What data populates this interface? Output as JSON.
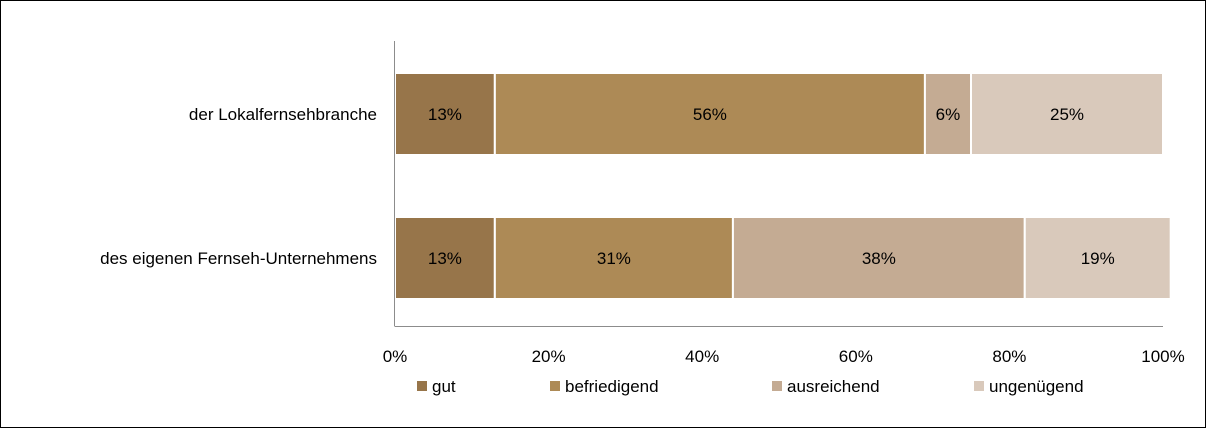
{
  "chart_data": {
    "type": "bar",
    "orientation": "horizontal",
    "stacked": true,
    "categories": [
      "der Lokalfernsehbranche",
      "des eigenen Fernseh-Unternehmens"
    ],
    "series": [
      {
        "name": "gut",
        "values": [
          13,
          13
        ],
        "color": "#97754a"
      },
      {
        "name": "befriedigend",
        "values": [
          56,
          31
        ],
        "color": "#ad8a56"
      },
      {
        "name": "ausreichend",
        "values": [
          6,
          38
        ],
        "color": "#c4ab93"
      },
      {
        "name": "ungenügend",
        "values": [
          25,
          19
        ],
        "color": "#d9c9bb"
      }
    ],
    "xticks": [
      "0%",
      "20%",
      "40%",
      "60%",
      "80%",
      "100%"
    ],
    "xlim": [
      0,
      100
    ],
    "legend_position": "bottom",
    "grid": false
  }
}
